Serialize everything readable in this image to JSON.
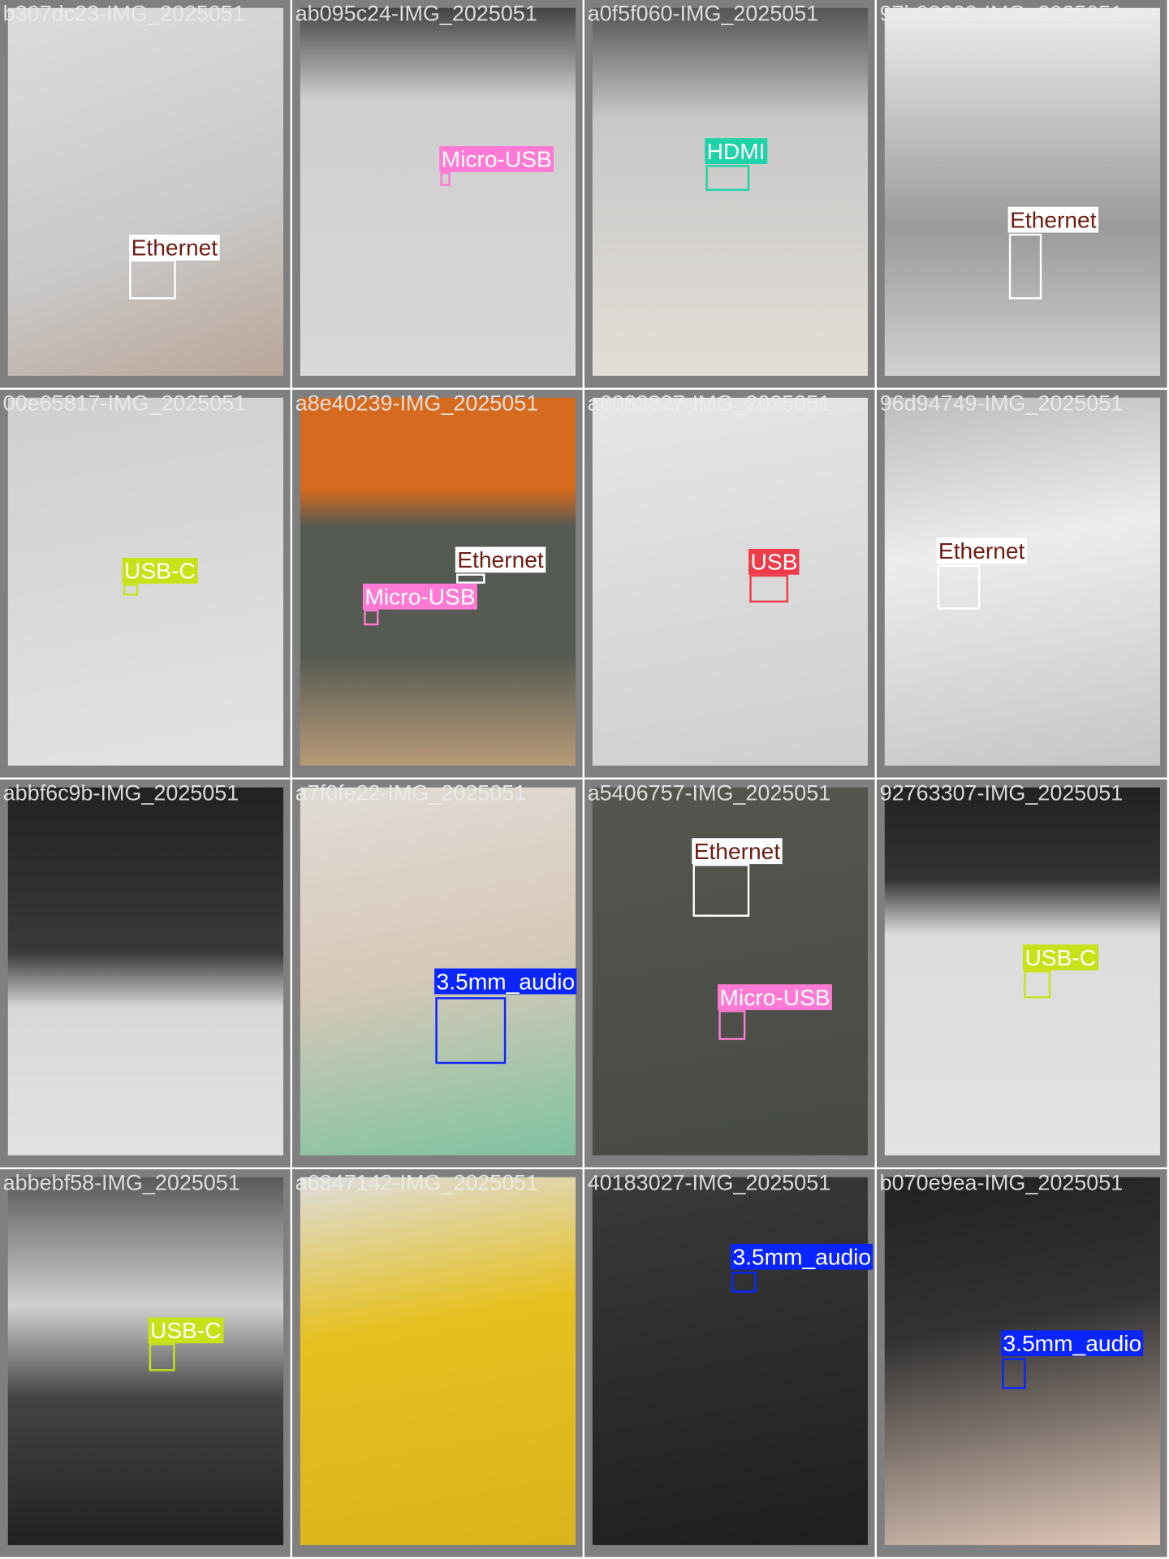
{
  "tiles": [
    {
      "filename": "b307dc23-IMG_2025051",
      "detections": [
        {
          "label": "Ethernet"
        }
      ]
    },
    {
      "filename": "ab095c24-IMG_2025051",
      "detections": [
        {
          "label": "Micro-USB"
        }
      ]
    },
    {
      "filename": "a0f5f060-IMG_2025051",
      "detections": [
        {
          "label": "HDMI"
        }
      ]
    },
    {
      "filename": "97b02222-IMG_2025051",
      "detections": [
        {
          "label": "Ethernet"
        }
      ]
    },
    {
      "filename": "00e65817-IMG_2025051",
      "detections": [
        {
          "label": "USB-C"
        }
      ]
    },
    {
      "filename": "a8e40239-IMG_2025051",
      "detections": [
        {
          "label": "Ethernet"
        },
        {
          "label": "Micro-USB"
        }
      ]
    },
    {
      "filename": "a6063327-IMG_2025051",
      "detections": [
        {
          "label": "USB"
        }
      ]
    },
    {
      "filename": "96d94749-IMG_2025051",
      "detections": [
        {
          "label": "Ethernet"
        }
      ]
    },
    {
      "filename": "abbf6c9b-IMG_2025051",
      "detections": []
    },
    {
      "filename": "a7f0fe22-IMG_2025051",
      "detections": [
        {
          "label": "3.5mm_audio"
        }
      ]
    },
    {
      "filename": "a5406757-IMG_2025051",
      "detections": [
        {
          "label": "Ethernet"
        },
        {
          "label": "Micro-USB"
        }
      ]
    },
    {
      "filename": "92763307-IMG_2025051",
      "detections": [
        {
          "label": "USB-C"
        }
      ]
    },
    {
      "filename": "abbebf58-IMG_2025051",
      "detections": [
        {
          "label": "USB-C"
        }
      ]
    },
    {
      "filename": "a6847142-IMG_2025051",
      "detections": []
    },
    {
      "filename": "40183027-IMG_2025051",
      "detections": [
        {
          "label": "3.5mm_audio"
        }
      ]
    },
    {
      "filename": "b070e9ea-IMG_2025051",
      "detections": [
        {
          "label": "3.5mm_audio"
        }
      ]
    }
  ]
}
